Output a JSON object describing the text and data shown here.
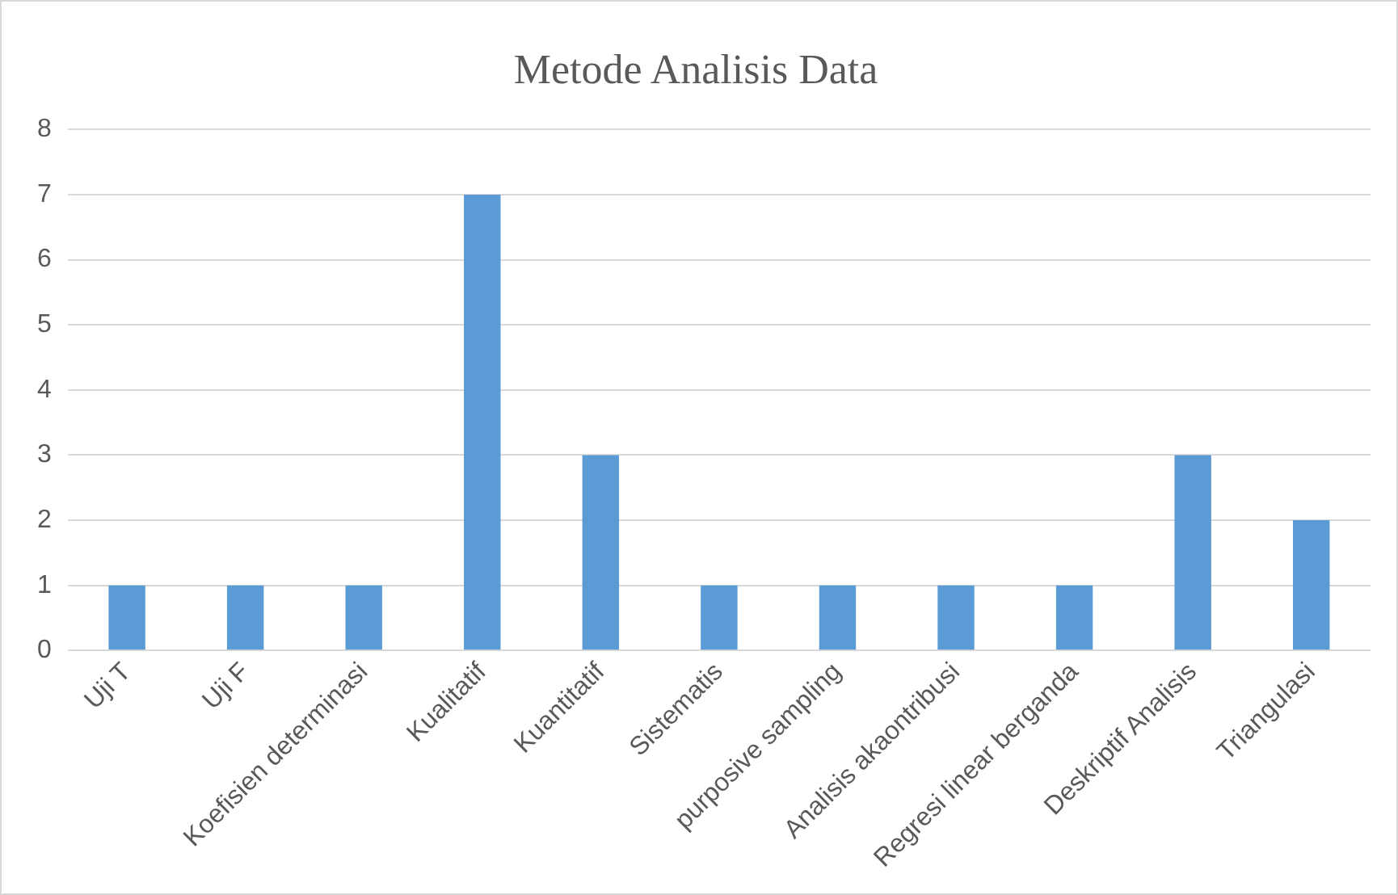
{
  "chart_data": {
    "type": "bar",
    "title": "Metode Analisis Data",
    "categories": [
      "Uji T",
      "Uji F",
      "Koefisien determinasi",
      "Kualitatif",
      "Kuantitatif",
      "Sistematis",
      "purposive sampling",
      "Analisis akaontribusi",
      "Regresi linear berganda",
      "Deskriptif Analisis",
      "Triangulasi"
    ],
    "values": [
      1,
      1,
      1,
      7,
      3,
      1,
      1,
      1,
      1,
      3,
      2
    ],
    "color": "#5b9bd5",
    "ylim": [
      0,
      8
    ],
    "yticks": [
      0,
      1,
      2,
      3,
      4,
      5,
      6,
      7,
      8
    ],
    "grid": "y",
    "legend": false
  }
}
